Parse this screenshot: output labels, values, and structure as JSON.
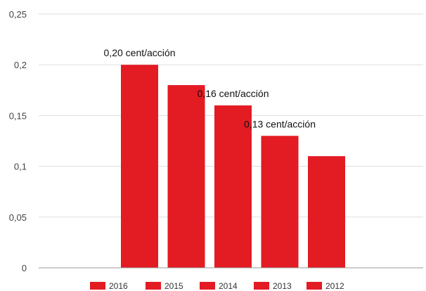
{
  "chart_data": {
    "type": "bar",
    "categories": [
      "2016",
      "2015",
      "2014",
      "2013",
      "2012"
    ],
    "series": [
      {
        "name": "2016",
        "values": [
          0.2,
          null,
          null,
          null,
          null
        ]
      },
      {
        "name": "2015",
        "values": [
          null,
          0.18,
          null,
          null,
          null
        ]
      },
      {
        "name": "2014",
        "values": [
          null,
          null,
          0.16,
          null,
          null
        ]
      },
      {
        "name": "2013",
        "values": [
          null,
          null,
          null,
          0.13,
          null
        ]
      },
      {
        "name": "2012",
        "values": [
          null,
          null,
          null,
          null,
          0.11
        ]
      }
    ],
    "values": [
      0.2,
      0.18,
      0.16,
      0.13,
      0.11
    ],
    "data_labels": [
      {
        "category": "2016",
        "text": "0,20 cent/acción"
      },
      {
        "category": "2014",
        "text": "0,16 cent/acción"
      },
      {
        "category": "2013",
        "text": "0,13 cent/acción"
      }
    ],
    "y_ticks": [
      {
        "value": 0.25,
        "label": "0,25"
      },
      {
        "value": 0.2,
        "label": "0,2"
      },
      {
        "value": 0.15,
        "label": "0,15"
      },
      {
        "value": 0.1,
        "label": "0,1"
      },
      {
        "value": 0.05,
        "label": "0,05"
      },
      {
        "value": 0,
        "label": "0"
      }
    ],
    "ylim": [
      0,
      0.25
    ],
    "grid": true,
    "legend_position": "bottom",
    "bar_color": "#e31b23",
    "title": "",
    "xlabel": "",
    "ylabel": ""
  }
}
